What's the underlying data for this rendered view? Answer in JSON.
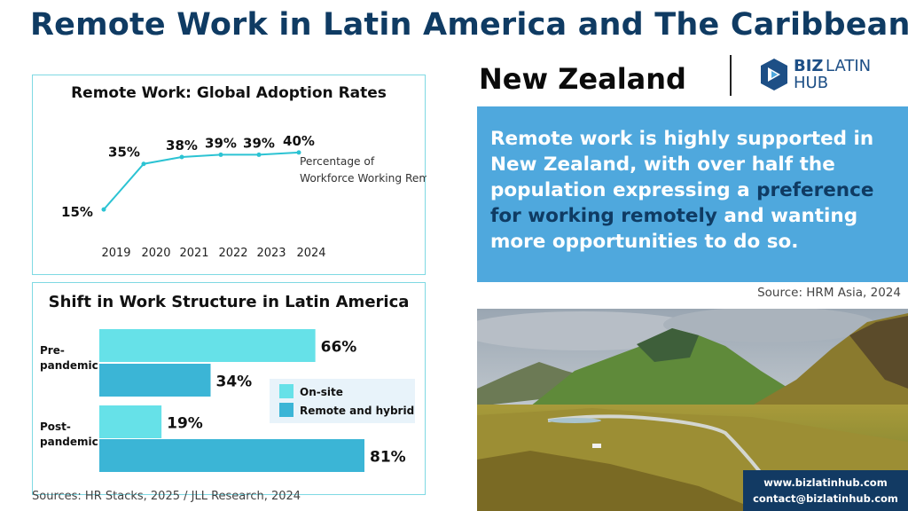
{
  "header": {
    "title": "Remote Work in Latin America and The Caribbean:",
    "country": "New Zealand",
    "logo_line1a": "BIZ",
    "logo_line1b": "LATIN",
    "logo_line2": "HUB"
  },
  "quote": {
    "part1": "Remote work is highly supported in New Zealand, with over half the population expressing a ",
    "highlight": "preference for working remotely",
    "part2": " and wanting more opportunities to do so."
  },
  "source_hrm": "Source: HRM Asia, 2024",
  "footer": {
    "sources": "Sources: HR Stacks, 2025 /  JLL Research, 2024"
  },
  "contact": {
    "website": "www.bizlatinhub.com",
    "email": "contact@bizlatinhub.com"
  },
  "colors": {
    "title_navy": "#0f3b63",
    "line_teal": "#2cc3d3",
    "onsite": "#66e1e8",
    "remote": "#3bb5d6",
    "quote_bg": "#4fa8dd"
  },
  "chart_data": [
    {
      "type": "line",
      "title": "Remote Work: Global Adoption Rates",
      "categories": [
        "2019",
        "2020",
        "2021",
        "2022",
        "2023",
        "2024"
      ],
      "series": [
        {
          "name": "Percentage of Workforce Working Remotely",
          "values": [
            15,
            35,
            38,
            39,
            39,
            40
          ],
          "labels": [
            "15%",
            "35%",
            "38%",
            "39%",
            "39%",
            "40%"
          ]
        }
      ],
      "ylim": [
        10,
        45
      ],
      "grid": false,
      "legend_position": "right"
    },
    {
      "type": "bar",
      "orientation": "horizontal",
      "title": "Shift in Work Structure in Latin America",
      "categories": [
        "Pre-\npandemic",
        "Post-\npandemic"
      ],
      "series": [
        {
          "name": "On-site",
          "values": [
            66,
            19
          ],
          "labels": [
            "66%",
            "19%"
          ]
        },
        {
          "name": "Remote and hybrid",
          "values": [
            34,
            81
          ],
          "labels": [
            "34%",
            "81%"
          ]
        }
      ],
      "xlim": [
        0,
        81
      ],
      "legend_position": "right"
    }
  ]
}
